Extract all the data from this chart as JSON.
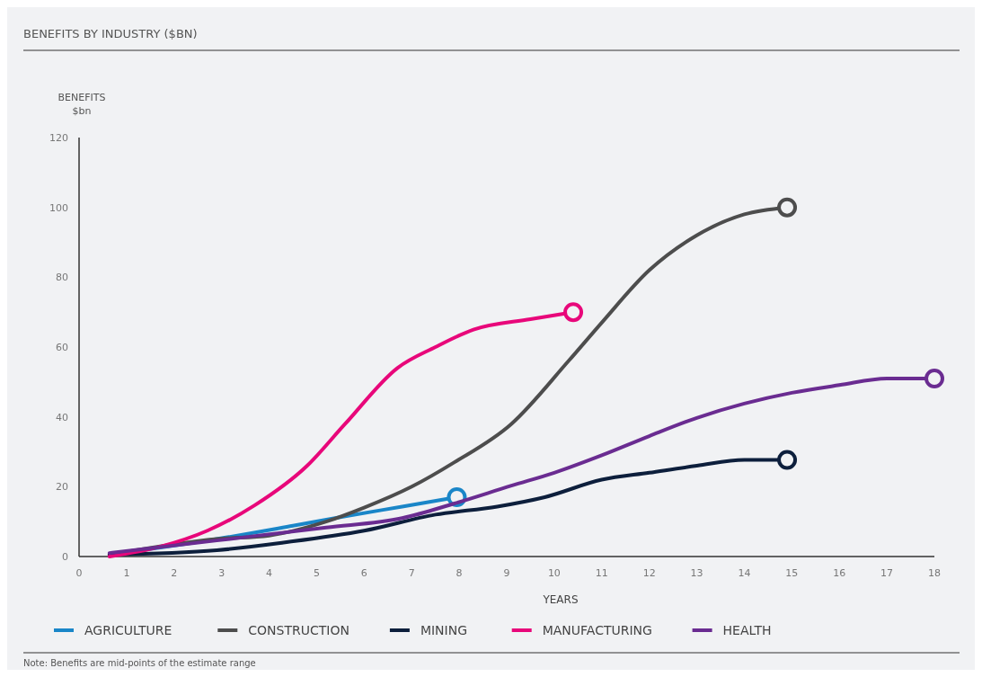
{
  "chart_data": {
    "type": "line",
    "title": "BENEFITS BY INDUSTRY ($BN)",
    "xlabel": "YEARS",
    "ylabel": "BENEFITS\n$bn",
    "xlim": [
      0,
      18
    ],
    "xticks": [
      0,
      1,
      2,
      3,
      4,
      5,
      6,
      7,
      8,
      9,
      10,
      11,
      12,
      13,
      14,
      15,
      16,
      17,
      18
    ],
    "ylim": [
      0,
      120
    ],
    "yticks": [
      0,
      20,
      40,
      60,
      80,
      100,
      120
    ],
    "legend": "bottom",
    "grid": false,
    "series": [
      {
        "name": "AGRICULTURE",
        "color": "#1a86c8",
        "x": [
          0.64,
          2.9,
          4.5,
          5.6,
          6.8,
          7.95
        ],
        "values": [
          0.5,
          5,
          8.8,
          11.5,
          14.3,
          17
        ]
      },
      {
        "name": "CONSTRUCTION",
        "color": "#4d4d4d",
        "x": [
          0.64,
          2.9,
          4,
          5.2,
          6,
          7,
          7.9,
          9.1,
          10.3,
          11,
          12,
          13,
          14,
          14.9
        ],
        "values": [
          0.5,
          5,
          6,
          10,
          14,
          20,
          27,
          38,
          56,
          67,
          82,
          92,
          98,
          100
        ]
      },
      {
        "name": "MINING",
        "color": "#0d1f3c",
        "x": [
          0.64,
          2.9,
          4.3,
          6,
          7.5,
          8.8,
          9.8,
          11,
          12,
          13,
          14,
          14.9
        ],
        "values": [
          0.5,
          1.8,
          4,
          7.4,
          12,
          14.3,
          17,
          22,
          24,
          26,
          27.7,
          27.7
        ]
      },
      {
        "name": "MANUFACTURING",
        "color": "#e8077a",
        "x": [
          0.64,
          1.7,
          2.7,
          3.7,
          4.8,
          5.6,
          6.7,
          7.5,
          8.3,
          9.5,
          10.4
        ],
        "values": [
          0,
          2.8,
          7.4,
          14.7,
          26,
          38,
          54,
          60,
          65,
          68,
          70
        ]
      },
      {
        "name": "HEALTH",
        "color": "#6a2c91",
        "x": [
          0.64,
          2.9,
          5.2,
          6.8,
          7.9,
          9.1,
          10,
          11,
          12,
          13,
          14,
          15,
          16,
          17,
          18
        ],
        "values": [
          1,
          4.6,
          8.3,
          11,
          15.2,
          20.3,
          24,
          29,
          34.5,
          39.7,
          43.8,
          46.9,
          49.1,
          51,
          51
        ]
      }
    ],
    "annotations": [
      "Note: Benefits are mid-points of the estimate range"
    ]
  }
}
